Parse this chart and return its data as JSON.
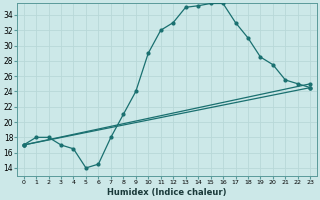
{
  "xlabel": "Humidex (Indice chaleur)",
  "bg_color": "#cce8e8",
  "grid_color": "#b8d8d8",
  "line_color": "#1a7070",
  "xlim": [
    -0.5,
    23.5
  ],
  "ylim": [
    13.0,
    35.5
  ],
  "yticks": [
    14,
    16,
    18,
    20,
    22,
    24,
    26,
    28,
    30,
    32,
    34
  ],
  "xticks": [
    0,
    1,
    2,
    3,
    4,
    5,
    6,
    7,
    8,
    9,
    10,
    11,
    12,
    13,
    14,
    15,
    16,
    17,
    18,
    19,
    20,
    21,
    22,
    23
  ],
  "line1_x": [
    0,
    1,
    2,
    3,
    4,
    5,
    6,
    7,
    8,
    9,
    10,
    11,
    12,
    13,
    14,
    15,
    16,
    17,
    18,
    19,
    20,
    21,
    22,
    23
  ],
  "line1_y": [
    17,
    18,
    18,
    17,
    16.5,
    14,
    14.5,
    18,
    21,
    24,
    29,
    32,
    33,
    35,
    35.2,
    35.5,
    35.5,
    33,
    31,
    28.5,
    27.5,
    25.5,
    25,
    24.5
  ],
  "line2_x": [
    0,
    23
  ],
  "line2_y": [
    17.0,
    25.0
  ],
  "line3_x": [
    0,
    23
  ],
  "line3_y": [
    17.0,
    24.5
  ]
}
